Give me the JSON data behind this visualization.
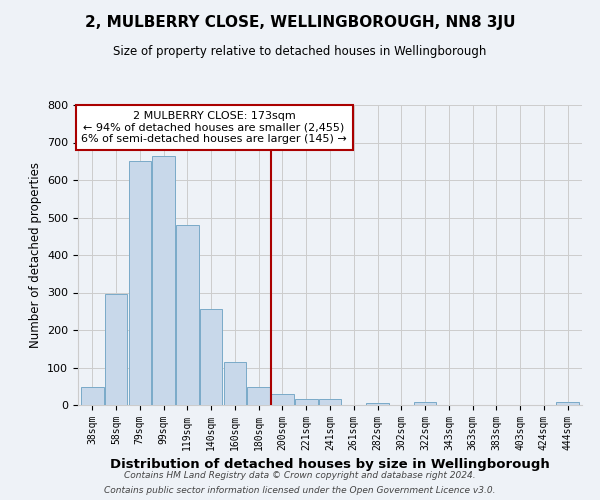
{
  "title": "2, MULBERRY CLOSE, WELLINGBOROUGH, NN8 3JU",
  "subtitle": "Size of property relative to detached houses in Wellingborough",
  "xlabel": "Distribution of detached houses by size in Wellingborough",
  "ylabel": "Number of detached properties",
  "bar_labels": [
    "38sqm",
    "58sqm",
    "79sqm",
    "99sqm",
    "119sqm",
    "140sqm",
    "160sqm",
    "180sqm",
    "200sqm",
    "221sqm",
    "241sqm",
    "261sqm",
    "282sqm",
    "302sqm",
    "322sqm",
    "343sqm",
    "363sqm",
    "383sqm",
    "403sqm",
    "424sqm",
    "444sqm"
  ],
  "bar_heights": [
    47,
    295,
    650,
    665,
    480,
    255,
    115,
    48,
    30,
    15,
    15,
    0,
    5,
    0,
    8,
    0,
    0,
    0,
    0,
    0,
    8
  ],
  "bar_color": "#c8d8ea",
  "bar_edge_color": "#7aaac8",
  "vline_x": 7.5,
  "vline_color": "#aa0000",
  "annotation_title": "2 MULBERRY CLOSE: 173sqm",
  "annotation_line1": "← 94% of detached houses are smaller (2,455)",
  "annotation_line2": "6% of semi-detached houses are larger (145) →",
  "annotation_box_facecolor": "#ffffff",
  "annotation_box_edgecolor": "#aa0000",
  "ylim": [
    0,
    800
  ],
  "yticks": [
    0,
    100,
    200,
    300,
    400,
    500,
    600,
    700,
    800
  ],
  "background_color": "#eef2f7",
  "grid_color": "#cccccc",
  "footer_line1": "Contains HM Land Registry data © Crown copyright and database right 2024.",
  "footer_line2": "Contains public sector information licensed under the Open Government Licence v3.0."
}
